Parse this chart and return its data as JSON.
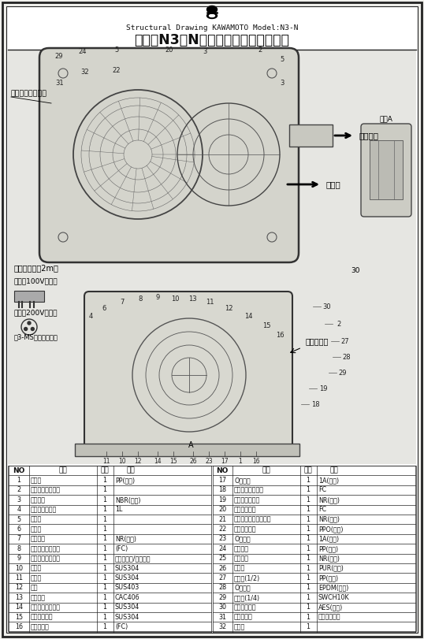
{
  "title_small": "Structural Drawing KAWAMOTO Model:N3-N",
  "title_large": "川本　N3－N形　カワエース　構造図",
  "bg_color": "#f0f0ec",
  "border_color": "#222222",
  "parts_left": [
    [
      1,
      "ベース",
      1,
      "PP(樹脂)"
    ],
    [
      2,
      "ファインセンサー",
      1,
      ""
    ],
    [
      3,
      "パッキン",
      1,
      "NBR(ゴム)"
    ],
    [
      4,
      "アキュムレータ",
      1,
      "1L"
    ],
    [
      5,
      "電磁弁",
      1,
      ""
    ],
    [
      6,
      "モータ",
      1,
      ""
    ],
    [
      7,
      "水切つぺ",
      1,
      "NR(ゴム)"
    ],
    [
      8,
      "ケーシングカバー",
      1,
      "(FC)"
    ],
    [
      9,
      "メカニカルシール",
      1,
      "セラミック/カーボン"
    ],
    [
      10,
      "ばね座",
      1,
      "SUS304"
    ],
    [
      11,
      "止め輪",
      1,
      "SUS304"
    ],
    [
      12,
      "キー",
      1,
      "SUS403"
    ],
    [
      13,
      "インペラ",
      1,
      "CAC406"
    ],
    [
      14,
      "ストッパーリング",
      1,
      "SUS304"
    ],
    [
      15,
      "平座止めねじ",
      1,
      "SUS304"
    ],
    [
      16,
      "ケーシング",
      1,
      "(FC)"
    ]
  ],
  "parts_right": [
    [
      17,
      "Oリング",
      1,
      "1A(ゴム)"
    ],
    [
      18,
      "弁座持ちフランジ",
      1,
      "FC"
    ],
    [
      19,
      "弁体持パッキン",
      1,
      "NR(ゴム)"
    ],
    [
      20,
      "ひじフランジ",
      1,
      "FC"
    ],
    [
      21,
      "ひじフランジパッキン",
      1,
      "NR(ゴム)"
    ],
    [
      22,
      "ひじフランジ",
      1,
      "PPO(樹脂)"
    ],
    [
      23,
      "Oリング",
      1,
      "1A(ゴム)"
    ],
    [
      24,
      "キャップ",
      1,
      "PP(樹脂)"
    ],
    [
      25,
      "パッキン",
      1,
      "NR(ゴム)"
    ],
    [
      26,
      "流量計",
      1,
      "PUR(樹脂)"
    ],
    [
      27,
      "プラグ(1/2)",
      1,
      "PP(樹脂)"
    ],
    [
      28,
      "Oリング",
      1,
      "EPDM(ゴム)"
    ],
    [
      29,
      "プラグ(1/4)",
      1,
      "SWCH10K"
    ],
    [
      30,
      "ポンプカバー",
      1,
      "AES(樹脂)"
    ],
    [
      31,
      "コンデンサ",
      1,
      "単相電源のみ"
    ],
    [
      32,
      "ヒータ",
      1,
      ""
    ]
  ],
  "text_color": "#111111",
  "table_bg": "#ffffff"
}
